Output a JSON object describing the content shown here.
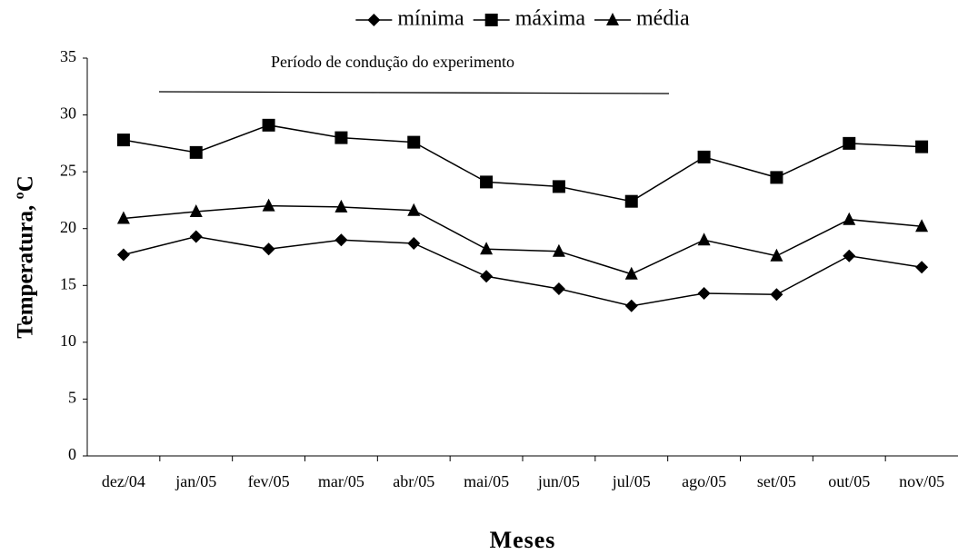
{
  "chart_data": {
    "type": "line",
    "annotation": "Período de condução do experimento",
    "x_label": "Meses",
    "y_label": "Temperatura, ºC",
    "categories": [
      "dez/04",
      "jan/05",
      "fev/05",
      "mar/05",
      "abr/05",
      "mai/05",
      "jun/05",
      "jul/05",
      "ago/05",
      "set/05",
      "out/05",
      "nov/05"
    ],
    "series": [
      {
        "name": "mínima",
        "color": "#000000",
        "marker": "diamond",
        "values": [
          17.7,
          19.3,
          18.2,
          19.0,
          18.7,
          15.8,
          14.7,
          13.2,
          14.3,
          14.2,
          17.6,
          16.6
        ]
      },
      {
        "name": "máxima",
        "color": "#000000",
        "marker": "square",
        "values": [
          27.8,
          26.7,
          29.1,
          28.0,
          27.6,
          24.1,
          23.7,
          22.4,
          26.3,
          24.5,
          27.5,
          27.2
        ]
      },
      {
        "name": "média",
        "color": "#000000",
        "marker": "triangle",
        "values": [
          20.9,
          21.5,
          22.0,
          21.9,
          21.6,
          18.2,
          18.0,
          16.0,
          19.0,
          17.6,
          20.8,
          20.2
        ]
      }
    ],
    "ylim": [
      0,
      35
    ],
    "yticks": [
      0,
      5,
      10,
      15,
      20,
      25,
      30,
      35
    ],
    "grid": false,
    "legend": "top"
  }
}
